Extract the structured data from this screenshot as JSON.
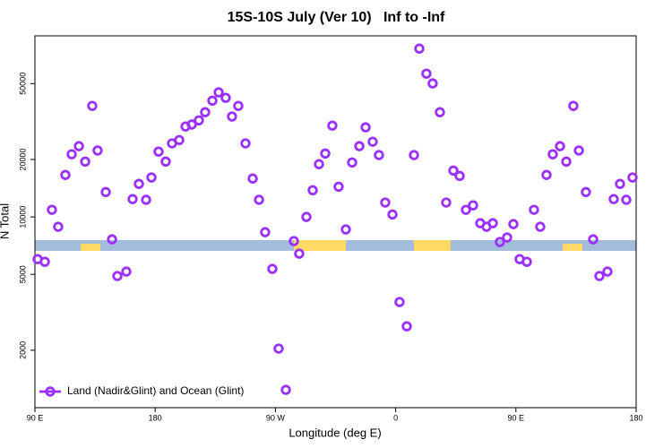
{
  "chart_data": {
    "type": "scatter",
    "title": "15S-10S July (Ver 10)   Inf to -Inf",
    "x_label": "Longitude (deg E)",
    "y_label": "N Total",
    "yscale": "log",
    "legend": "bottom-left",
    "xlim": [
      90,
      540
    ],
    "xticks": [
      {
        "value": 90,
        "label": "90 E"
      },
      180,
      {
        "value": 270,
        "label": "90 W"
      },
      {
        "value": 360,
        "label": "0"
      },
      {
        "value": 450,
        "label": "90 E"
      },
      {
        "value": 540,
        "label": "180"
      }
    ],
    "ylim": [
      1000,
      89000
    ],
    "yticks": [
      2000,
      5000,
      10000,
      20000,
      50000
    ],
    "series": [
      {
        "name": "Land (Nadir&Glint) and Ocean (Glint)",
        "color": "#9b30ff",
        "x": [
          92.0,
          97.4,
          102.7,
          107.4,
          112.8,
          117.5,
          122.9,
          127.6,
          132.9,
          136.9,
          143.0,
          147.7,
          151.7,
          158.4,
          163.1,
          167.8,
          173.2,
          177.2,
          182.5,
          187.9,
          192.6,
          198.0,
          202.7,
          207.4,
          212.7,
          217.4,
          222.8,
          227.5,
          232.8,
          237.5,
          242.2,
          247.6,
          253.0,
          257.7,
          262.3,
          267.7,
          272.4,
          277.8,
          283.8,
          287.8,
          293.2,
          297.9,
          302.6,
          307.3,
          312.6,
          317.3,
          322.7,
          327.4,
          332.8,
          337.5,
          342.8,
          347.5,
          352.2,
          357.6,
          362.9,
          368.3,
          373.7,
          377.7,
          383.0,
          387.7,
          393.1,
          397.8,
          403.2,
          407.9,
          412.6,
          417.9,
          423.3,
          428.0,
          432.7,
          438.0,
          443.4,
          448.1,
          452.8,
          458.2,
          463.5,
          468.2,
          472.9,
          477.6,
          483.0,
          487.7,
          493.0,
          497.1,
          502.4,
          507.8,
          512.5,
          518.5,
          523.2,
          527.9,
          532.6,
          537.3
        ],
        "values": [
          6010,
          5820,
          10900,
          8880,
          16600,
          21300,
          23500,
          19500,
          38200,
          22300,
          13500,
          7630,
          4900,
          5170,
          12400,
          14900,
          12300,
          16100,
          22000,
          19500,
          24300,
          25300,
          29800,
          30500,
          32100,
          35400,
          40700,
          45000,
          42100,
          33600,
          38200,
          24300,
          15900,
          12300,
          8320,
          5340,
          2040,
          1240,
          7470,
          6420,
          10000,
          13800,
          18900,
          21500,
          30100,
          14400,
          8600,
          19300,
          23500,
          29500,
          24800,
          21100,
          11900,
          10300,
          3580,
          2670,
          21100,
          76300,
          56400,
          50100,
          35400,
          11900,
          17500,
          16400,
          10900,
          11500,
          9270,
          8880,
          9270,
          7390,
          7800,
          9170,
          6010,
          5820,
          10900,
          8880,
          16600,
          21300,
          23500,
          19500,
          38200,
          22300,
          13500,
          7630,
          4900,
          5170,
          12400,
          14900,
          12300,
          16100
        ]
      }
    ]
  }
}
